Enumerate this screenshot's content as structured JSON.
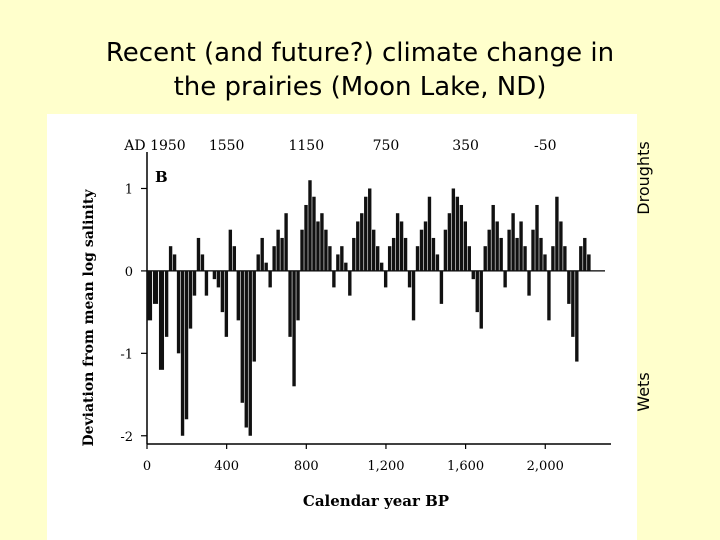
{
  "slide": {
    "title_line1": "Recent (and future?) climate change in",
    "title_line2": "the prairies  (Moon Lake, ND)",
    "droughts_label": "Droughts",
    "wets_label": "Wets"
  },
  "chart_data": {
    "type": "bar",
    "panel_letter": "B",
    "xlabel": "Calendar year BP",
    "ylabel": "Deviation from mean log salinity",
    "xlim": [
      0,
      2300
    ],
    "ylim": [
      -2.1,
      1.2
    ],
    "yticks": [
      1,
      0,
      -1,
      -2
    ],
    "ytick_labels": [
      "1",
      "0",
      "-1",
      "-2"
    ],
    "xticks_bottom": [
      0,
      400,
      800,
      1200,
      1600,
      2000
    ],
    "xtick_labels_bottom": [
      "0",
      "400",
      "800",
      "1,200",
      "1,600",
      "2,000"
    ],
    "xticks_top": [
      0,
      400,
      800,
      1200,
      1600,
      2000
    ],
    "xtick_labels_top": [
      "AD 1950",
      "1550",
      "1150",
      "750",
      "350",
      "-50"
    ],
    "colors": {
      "bars": "#111111",
      "axis": "#000000"
    },
    "series": [
      {
        "x": [
          0,
          30,
          60,
          90,
          110,
          130,
          150,
          170,
          190,
          210,
          230,
          250,
          270,
          290,
          310,
          330,
          350,
          370,
          390,
          410,
          430,
          450,
          470,
          490,
          510,
          530,
          550,
          570,
          590,
          610,
          630,
          650,
          670,
          690,
          710,
          730,
          750,
          770,
          790,
          810,
          830,
          850,
          870,
          890,
          910,
          930,
          950,
          970,
          990,
          1010,
          1030,
          1050,
          1070,
          1090,
          1110,
          1130,
          1150,
          1170,
          1190,
          1210,
          1230,
          1250,
          1270,
          1290,
          1310,
          1330,
          1350,
          1370,
          1390,
          1410,
          1430,
          1450,
          1470,
          1490,
          1510,
          1530,
          1550,
          1570,
          1590,
          1610,
          1630,
          1650,
          1670,
          1690,
          1710,
          1730,
          1750,
          1770,
          1790,
          1810,
          1830,
          1850,
          1870,
          1890,
          1910,
          1930,
          1950,
          1970,
          1990,
          2010,
          2030,
          2050,
          2070,
          2090,
          2110,
          2130,
          2150,
          2170,
          2190,
          2210
        ],
        "values": [
          -0.6,
          -0.4,
          -1.2,
          -0.8,
          0.3,
          0.2,
          -1.0,
          -2.0,
          -1.8,
          -0.7,
          -0.3,
          0.4,
          0.2,
          -0.3,
          0.0,
          -0.1,
          -0.2,
          -0.5,
          -0.8,
          0.5,
          0.3,
          -0.6,
          -1.6,
          -1.9,
          -2.0,
          -1.1,
          0.2,
          0.4,
          0.1,
          -0.2,
          0.3,
          0.5,
          0.4,
          0.7,
          -0.8,
          -1.4,
          -0.6,
          0.5,
          0.8,
          1.1,
          0.9,
          0.6,
          0.7,
          0.5,
          0.3,
          -0.2,
          0.2,
          0.3,
          0.1,
          -0.3,
          0.4,
          0.6,
          0.7,
          0.9,
          1.0,
          0.5,
          0.3,
          0.1,
          -0.2,
          0.3,
          0.4,
          0.7,
          0.6,
          0.4,
          -0.2,
          -0.6,
          0.3,
          0.5,
          0.6,
          0.9,
          0.4,
          0.2,
          -0.4,
          0.5,
          0.7,
          1.0,
          0.9,
          0.8,
          0.6,
          0.3,
          -0.1,
          -0.5,
          -0.7,
          0.3,
          0.5,
          0.8,
          0.6,
          0.4,
          -0.2,
          0.5,
          0.7,
          0.4,
          0.6,
          0.3,
          -0.3,
          0.5,
          0.8,
          0.4,
          0.2,
          -0.6,
          0.3,
          0.9,
          0.6,
          0.3,
          -0.4,
          -0.8,
          -1.1,
          0.3,
          0.4,
          0.2
        ]
      }
    ]
  }
}
